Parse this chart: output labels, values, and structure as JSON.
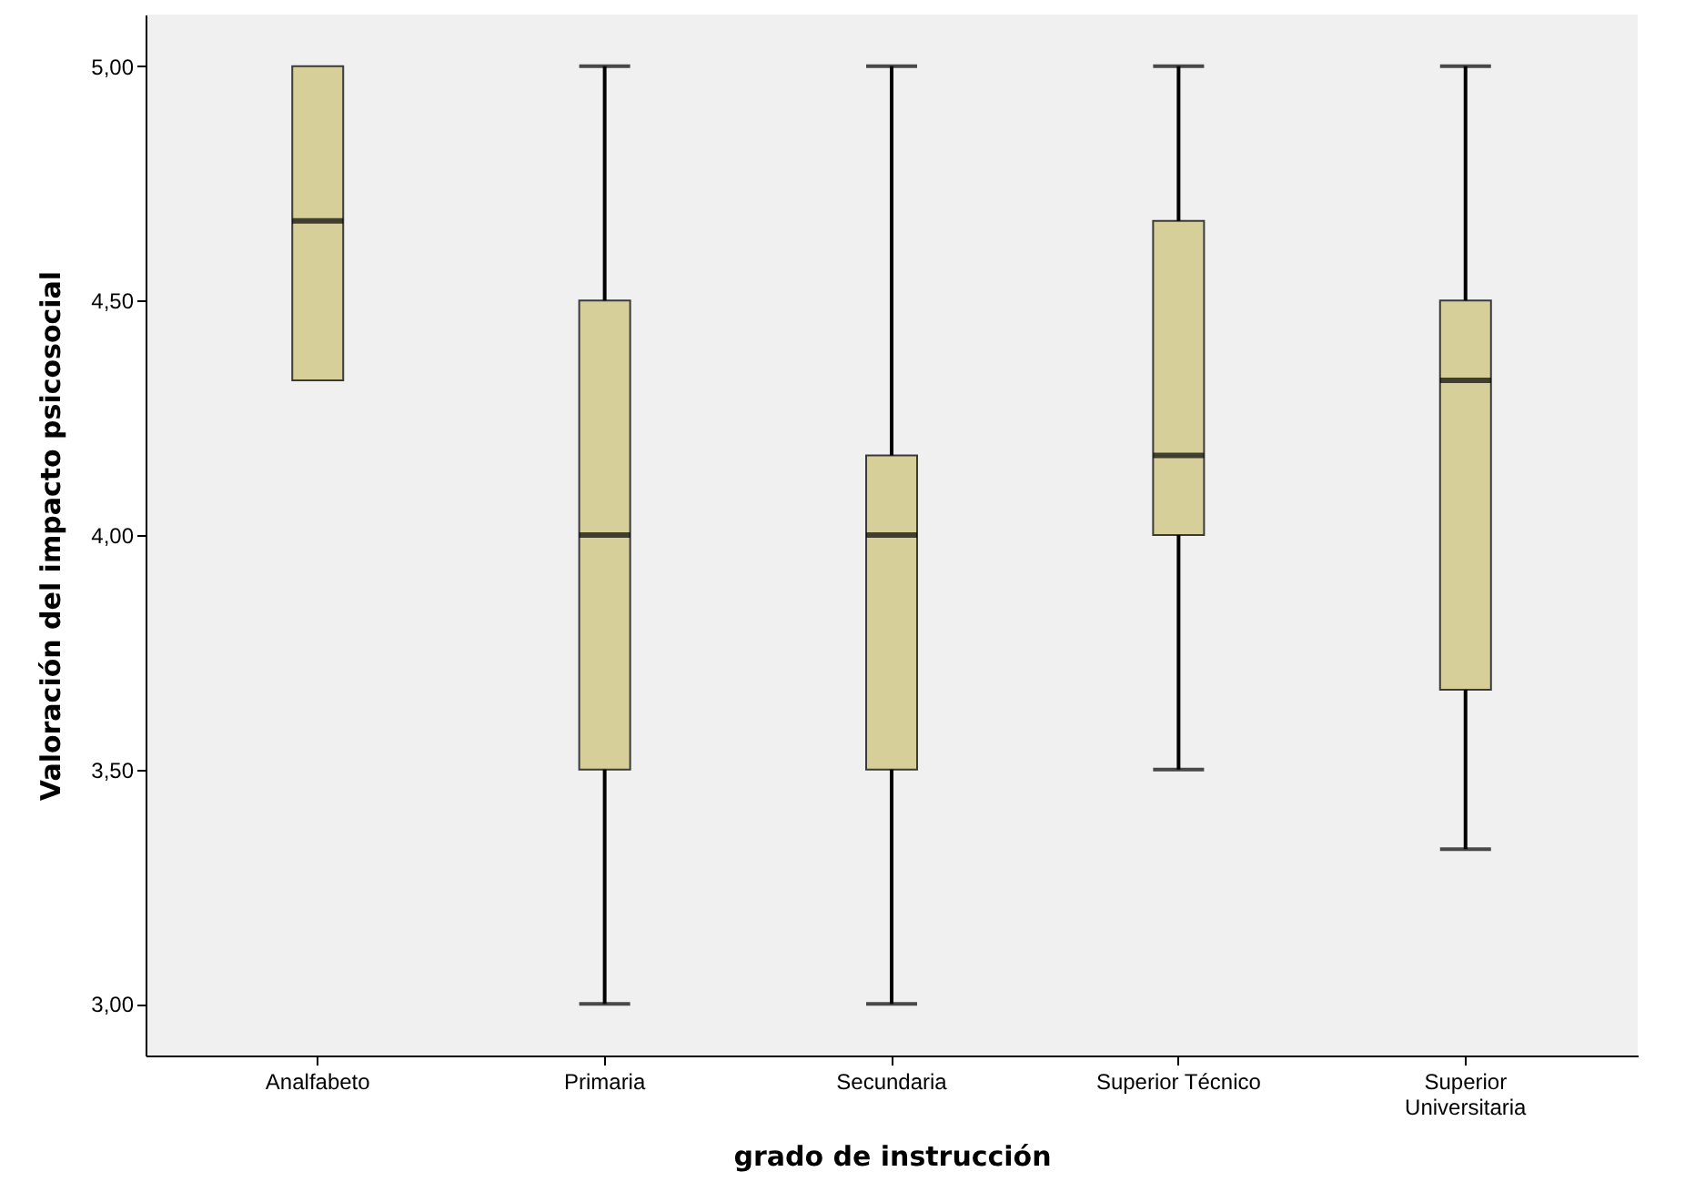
{
  "chart_data": {
    "type": "box",
    "xlabel": "grado de instrucción",
    "ylabel": "Valoración del impacto psicosocial",
    "categories": [
      "Analfabeto",
      "Primaria",
      "Secundaria",
      "Superior Técnico",
      "Superior Universitaria"
    ],
    "series": [
      {
        "color": "#d6cf9a",
        "boxes": [
          {
            "low": 4.33,
            "q1": 4.33,
            "median": 4.67,
            "q3": 5.0,
            "high": 5.0
          },
          {
            "low": 3.0,
            "q1": 3.5,
            "median": 4.0,
            "q3": 4.5,
            "high": 5.0
          },
          {
            "low": 3.0,
            "q1": 3.5,
            "median": 4.0,
            "q3": 4.17,
            "high": 5.0
          },
          {
            "low": 3.5,
            "q1": 4.0,
            "median": 4.17,
            "q3": 4.67,
            "high": 5.0
          },
          {
            "low": 3.33,
            "q1": 3.67,
            "median": 4.33,
            "q3": 4.5,
            "high": 5.0
          }
        ]
      }
    ],
    "ylim": [
      2.89,
      5.11
    ],
    "yticks": [
      {
        "value": 3,
        "label": "3,00"
      },
      {
        "value": 3.5,
        "label": "3,50"
      },
      {
        "value": 4,
        "label": "4,00"
      },
      {
        "value": 4.5,
        "label": "4,50"
      },
      {
        "value": 5,
        "label": "5,00"
      }
    ]
  }
}
